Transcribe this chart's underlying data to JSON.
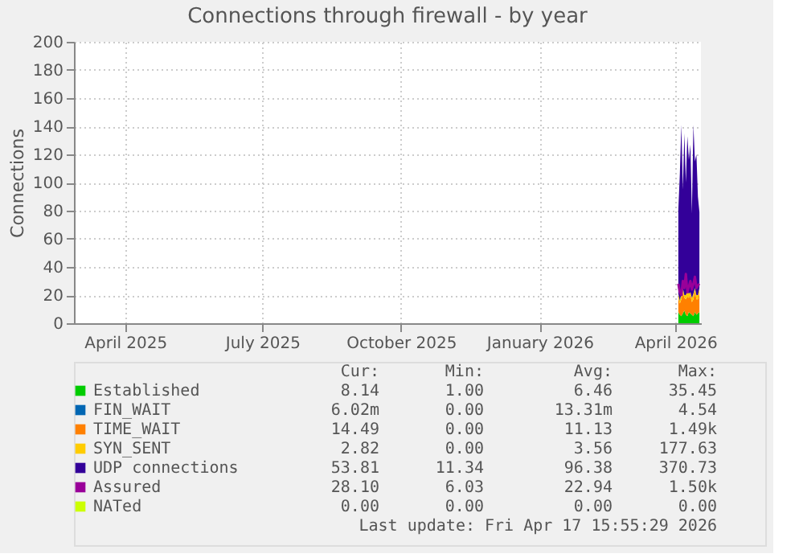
{
  "chart_data": {
    "type": "area",
    "stacked": true,
    "title": "Connections through firewall - by year",
    "ylabel": "Connections",
    "x": [
      "2026-04-03",
      "2026-04-04",
      "2026-04-05",
      "2026-04-06",
      "2026-04-07",
      "2026-04-08",
      "2026-04-09",
      "2026-04-10",
      "2026-04-11",
      "2026-04-12",
      "2026-04-13",
      "2026-04-14",
      "2026-04-15",
      "2026-04-16",
      "2026-04-17"
    ],
    "series": [
      {
        "name": "Established",
        "color": "#00cc00",
        "values": [
          8,
          6,
          5,
          7,
          9,
          6,
          5,
          8,
          7,
          6,
          5,
          8,
          6,
          7,
          8
        ]
      },
      {
        "name": "FIN_WAIT",
        "color": "#0066b3",
        "values": [
          null,
          null,
          null,
          null,
          null,
          null,
          null,
          null,
          null,
          null,
          null,
          null,
          null,
          null,
          null
        ]
      },
      {
        "name": "TIME_WAIT",
        "color": "#ff8000",
        "values": [
          10,
          8,
          12,
          15,
          9,
          11,
          14,
          10,
          13,
          9,
          12,
          15,
          11,
          10,
          14
        ]
      },
      {
        "name": "SYN_SENT",
        "color": "#ffcc00",
        "values": [
          3,
          2,
          4,
          3,
          2,
          3,
          4,
          3,
          2,
          3,
          4,
          2,
          3,
          3,
          3
        ]
      },
      {
        "name": "UDP connections",
        "color": "#330099",
        "values": [
          60,
          90,
          120,
          70,
          115,
          80,
          110,
          95,
          105,
          60,
          120,
          90,
          100,
          70,
          54
        ]
      },
      {
        "name": "Assured",
        "color": "#990099",
        "type": "line",
        "values": [
          28,
          22,
          20,
          30,
          25,
          35,
          22,
          26,
          30,
          24,
          28,
          33,
          25,
          27,
          28
        ]
      },
      {
        "name": "NATed",
        "color": "#ccff00",
        "values": [
          null,
          null,
          null,
          null,
          null,
          null,
          null,
          null,
          null,
          null,
          null,
          null,
          null,
          null,
          null
        ]
      }
    ],
    "xlim": [
      "2025-02-26",
      "2026-04-18"
    ],
    "xticks": [
      {
        "value": "2025-04-01",
        "label": "April 2025"
      },
      {
        "value": "2025-07-01",
        "label": "July 2025"
      },
      {
        "value": "2025-10-01",
        "label": "October 2025"
      },
      {
        "value": "2026-01-01",
        "label": "January 2026"
      },
      {
        "value": "2026-04-01",
        "label": "April 2026"
      }
    ],
    "ylim": [
      0,
      200
    ],
    "yticks": [
      0,
      20,
      40,
      60,
      80,
      100,
      120,
      140,
      160,
      180,
      200
    ],
    "grid": true,
    "legend": "bottom",
    "annotations": [
      "Cur:",
      "Min:",
      "Avg:",
      "Max:",
      "8.14",
      "1.00",
      "6.46",
      "35.45",
      "6.02m",
      "0.00",
      "13.31m",
      "4.54",
      "14.49",
      "0.00",
      "11.13",
      "1.49k",
      "2.82",
      "0.00",
      "3.56",
      "177.63",
      "53.81",
      "11.34",
      "96.38",
      "370.73",
      "28.10",
      "6.03",
      "22.94",
      "1.50k",
      "0.00",
      "0.00",
      "0.00",
      "0.00",
      "Last update: Fri Apr 17 15:55:29 2026"
    ]
  }
}
